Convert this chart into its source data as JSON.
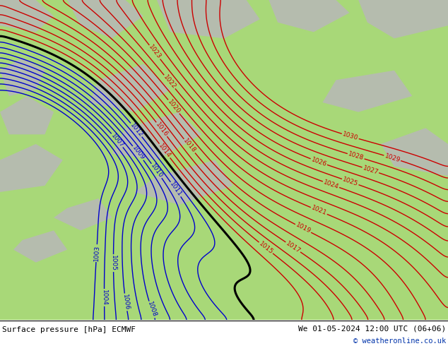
{
  "title_left": "Surface pressure [hPa] ECMWF",
  "title_right": "We 01-05-2024 12:00 UTC (06+06)",
  "copyright": "© weatheronline.co.uk",
  "bg_color_land": "#a8d878",
  "bg_color_gray": "#b8b8b8",
  "contour_red_color": "#cc0000",
  "contour_blue_color": "#0000cc",
  "contour_black_color": "#000000",
  "figsize": [
    6.34,
    4.9
  ],
  "dpi": 100
}
